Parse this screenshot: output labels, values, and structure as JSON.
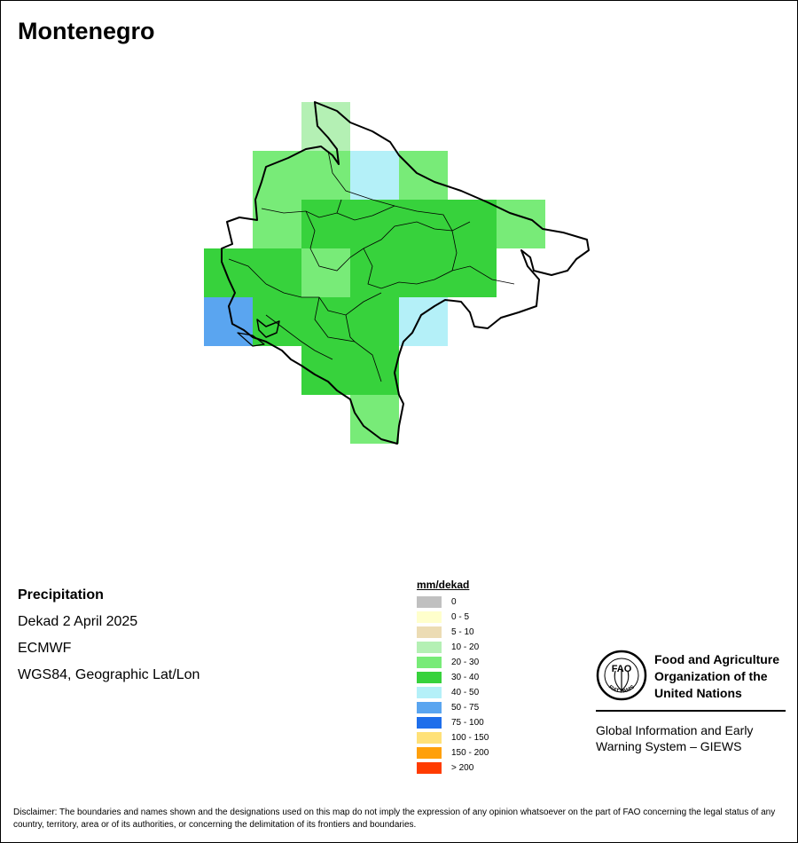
{
  "title": "Montenegro",
  "info": {
    "variable": "Precipitation",
    "period": "Dekad 2 April 2025",
    "source": "ECMWF",
    "projection": "WGS84, Geographic Lat/Lon"
  },
  "legend": {
    "title": "mm/dekad",
    "classes": [
      {
        "label": "0",
        "color": "#c0c0c0"
      },
      {
        "label": "0 - 5",
        "color": "#ffffcc"
      },
      {
        "label": "5 - 10",
        "color": "#ecdcb4"
      },
      {
        "label": "10 - 20",
        "color": "#b4f0b4"
      },
      {
        "label": "20 - 30",
        "color": "#78eb78"
      },
      {
        "label": "30 - 40",
        "color": "#37d23c"
      },
      {
        "label": "40 - 50",
        "color": "#b4f0f8"
      },
      {
        "label": "50 - 75",
        "color": "#5aa5f0"
      },
      {
        "label": "75 - 100",
        "color": "#1e6eeb"
      },
      {
        "label": "100 - 150",
        "color": "#ffe178"
      },
      {
        "label": "150 - 200",
        "color": "#ffa00a"
      },
      {
        "label": "> 200",
        "color": "#ff3c00"
      }
    ]
  },
  "grid": {
    "rows": [
      {
        "cells": [
          null,
          null,
          "10 - 20",
          null,
          null,
          null,
          null
        ]
      },
      {
        "cells": [
          null,
          "20 - 30",
          "20 - 30",
          "40 - 50",
          "20 - 30",
          null,
          null
        ]
      },
      {
        "cells": [
          null,
          "20 - 30",
          "30 - 40",
          "30 - 40",
          "30 - 40",
          "30 - 40",
          "20 - 30"
        ]
      },
      {
        "cells": [
          "30 - 40",
          "30 - 40",
          "20 - 30",
          "30 - 40",
          "30 - 40",
          "30 - 40",
          null
        ]
      },
      {
        "cells": [
          "50 - 75",
          "30 - 40",
          "30 - 40",
          "30 - 40",
          "40 - 50",
          null,
          null
        ]
      },
      {
        "cells": [
          null,
          null,
          "30 - 40",
          "30 - 40",
          null,
          null,
          null
        ]
      },
      {
        "cells": [
          null,
          null,
          null,
          "20 - 30",
          null,
          null,
          null
        ]
      }
    ]
  },
  "organization": {
    "emblem_letters": "FAO",
    "emblem_motto": "FIAT PANIS",
    "name": "Food and Agriculture\nOrganization of the\nUnited Nations",
    "system": "Global Information and Early\nWarning System – GIEWS"
  },
  "disclaimer": "Disclaimer: The boundaries and names shown and the designations used on this map do not imply the expression of any opinion whatsoever on the part of FAO concerning the legal status of any country, territory, area or of its authorities, or concerning the delimitation of its frontiers and boundaries."
}
